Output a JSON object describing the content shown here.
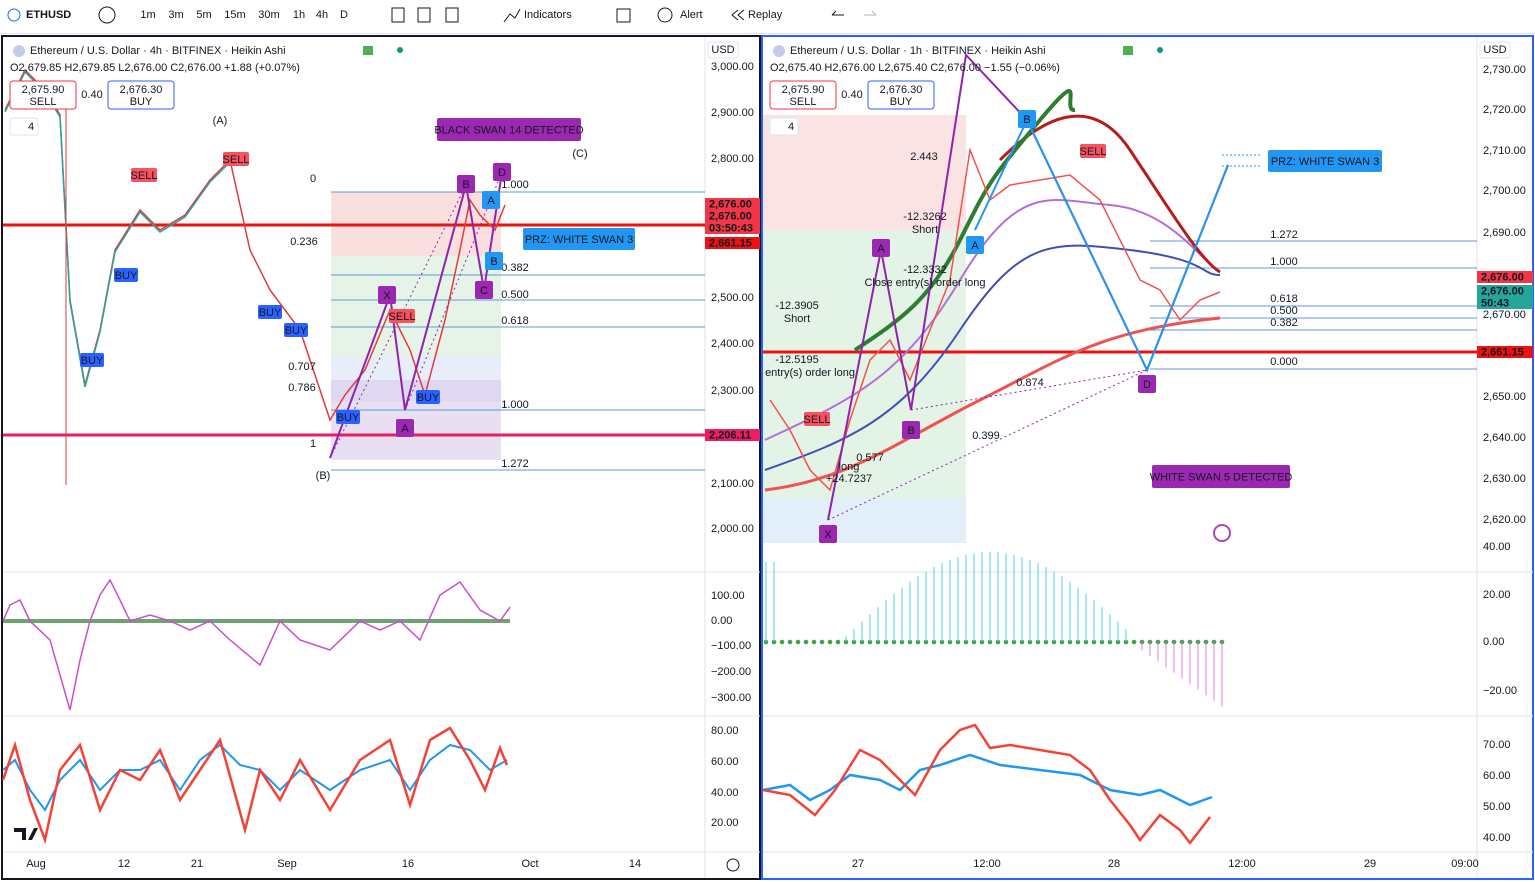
{
  "toolbar": {
    "symbol": "ETHUSD",
    "intervals": [
      "1m",
      "3m",
      "5m",
      "15m",
      "30m",
      "1h",
      "4h",
      "D"
    ],
    "indicators": "Indicators",
    "alert": "Alert",
    "replay": "Replay"
  },
  "panes": [
    {
      "title": "Ethereum / U.S. Dollar · 4h · BITFINEX · Heikin Ashi",
      "ohlc": "O2,679.85 H2,679.85 L2,676.00 C2,676.00 +1.88 (+0.07%)",
      "sell": {
        "price": "2,675.90",
        "label": "SELL"
      },
      "spread": "0.40",
      "buy": {
        "price": "2,676.30",
        "label": "BUY"
      },
      "layers": "4",
      "currency": "USD",
      "price_ticks": [
        "3,000.00",
        "2,900.00",
        "2,800.00",
        "2,500.00",
        "2,400.00",
        "2,300.00",
        "2,100.00",
        "2,000.00"
      ],
      "price_tags": [
        "2,676.00",
        "2,676.00",
        "03:50:43",
        "2,661.15",
        "2,206.11"
      ],
      "osc_ticks": [
        "100.00",
        "0.00",
        "−100.00",
        "−200.00",
        "−300.00"
      ],
      "rsi_ticks": [
        "80.00",
        "60.00",
        "40.00",
        "20.00"
      ],
      "time_ticks": [
        "Aug",
        "12",
        "21",
        "Sep",
        "16",
        "Oct",
        "14"
      ],
      "annotations": [
        "(A)",
        "(B)",
        "(C)",
        "BLACK SWAN 14 DETECTED",
        "PRZ: WHITE SWAN 3",
        "0",
        "1",
        "0.236",
        "0.707",
        "0.786",
        "1.000",
        "0.382",
        "0.500",
        "0.618",
        "1.000",
        "1.272",
        "X",
        "A",
        "B",
        "C",
        "D",
        "A",
        "B",
        "SELL",
        "SELL",
        "BUY",
        "BUY",
        "BUY",
        "BUY",
        "SELL",
        "BUY",
        "BUY"
      ]
    },
    {
      "title": "Ethereum / U.S. Dollar · 1h · BITFINEX · Heikin Ashi",
      "ohlc": "O2,675.40 H2,676.00 L2,675.40 C2,676.00 −1.55 (−0.06%)",
      "sell": {
        "price": "2,675.90",
        "label": "SELL"
      },
      "spread": "0.40",
      "buy": {
        "price": "2,676.30",
        "label": "BUY"
      },
      "layers": "4",
      "currency": "USD",
      "price_ticks": [
        "2,730.00",
        "2,720.00",
        "2,710.00",
        "2,700.00",
        "2,690.00",
        "2,670.00",
        "2,650.00",
        "2,640.00",
        "2,630.00",
        "2,620.00"
      ],
      "price_tags": [
        "2,676.00",
        "2,676.00",
        "50:43",
        "2,661.15"
      ],
      "osc_ticks": [
        "40.00",
        "20.00",
        "0.00",
        "−20.00"
      ],
      "rsi_ticks": [
        "70.00",
        "60.00",
        "50.00",
        "40.00"
      ],
      "time_ticks": [
        "27",
        "12:00",
        "28",
        "12:00",
        "29",
        "09:00"
      ],
      "annotations": [
        "PRZ: WHITE SWAN 3",
        "WHITE SWAN 5 DETECTED",
        "SELL",
        "SELL",
        "1.272",
        "1.000",
        "0.618",
        "0.500",
        "0.382",
        "0.000",
        "2.443",
        "0.874",
        "0.399",
        "0.577",
        "A",
        "B",
        "A",
        "B",
        "D",
        "X",
        "-12.3262",
        "Short",
        "-12.3332",
        "Close entry(s) order long",
        "-12.3905",
        "Short",
        "-12.5195",
        "entry(s) order long",
        "long",
        "+24.7237"
      ]
    }
  ]
}
